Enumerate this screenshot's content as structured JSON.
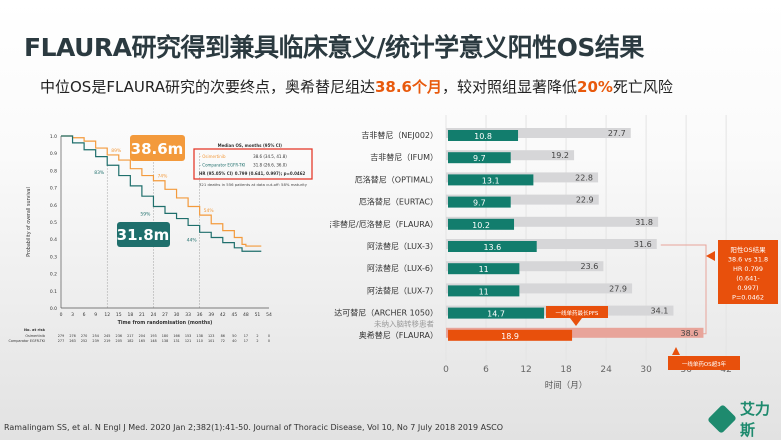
{
  "title": "FLAURA研究得到兼具临床意义/统计学意义阳性OS结果",
  "subtitle": {
    "p1": "中位OS是FLAURA研究的次要终点，奥希替尼组达",
    "h1": "38.6个月",
    "p2": "，较对照组显著降低",
    "h2": "20%",
    "p3": "死亡风险"
  },
  "footer": "Ramalingam SS, et al. N Engl J Med. 2020 Jan 2;382(1):41-50. Journal of Thoracic Disease, Vol 10, No 7 July 2018     2019 ASCO",
  "logo": {
    "text": "艾力斯"
  },
  "colors": {
    "osimertinib": "#f39a3c",
    "comparator": "#1f6f6c",
    "green_bar": "#127d6d",
    "gray_bar": "#d6d6d8",
    "highlight": "#e8500c"
  },
  "chart_data": [
    {
      "type": "line",
      "ylabel": "Probability of overall survival",
      "xlabel": "Time from randomisation (months)",
      "xticks": [
        0,
        3,
        6,
        9,
        12,
        15,
        18,
        21,
        24,
        27,
        30,
        33,
        36,
        39,
        42,
        45,
        48,
        51,
        54
      ],
      "yticks": [
        "0.0",
        "0.1",
        "0.2",
        "0.3",
        "0.4",
        "0.5",
        "0.6",
        "0.7",
        "0.8",
        "0.9",
        "1.0"
      ],
      "xlim": [
        0,
        54
      ],
      "ylim": [
        0,
        1
      ],
      "series": [
        {
          "name": "Osimertinib",
          "points": [
            [
              0,
              1
            ],
            [
              3,
              0.99
            ],
            [
              6,
              0.97
            ],
            [
              9,
              0.93
            ],
            [
              12,
              0.89
            ],
            [
              15,
              0.86
            ],
            [
              18,
              0.81
            ],
            [
              21,
              0.77
            ],
            [
              24,
              0.74
            ],
            [
              27,
              0.69
            ],
            [
              30,
              0.64
            ],
            [
              33,
              0.59
            ],
            [
              36,
              0.54
            ],
            [
              39,
              0.49
            ],
            [
              42,
              0.45
            ],
            [
              45,
              0.41
            ],
            [
              47,
              0.37
            ],
            [
              48,
              0.36
            ],
            [
              52,
              0.36
            ]
          ],
          "label_points": [
            "89%",
            "74%",
            "54%"
          ]
        },
        {
          "name": "Comparator EGFR-TKI",
          "points": [
            [
              0,
              1
            ],
            [
              3,
              0.96
            ],
            [
              6,
              0.92
            ],
            [
              9,
              0.88
            ],
            [
              12,
              0.83
            ],
            [
              15,
              0.77
            ],
            [
              18,
              0.71
            ],
            [
              21,
              0.65
            ],
            [
              24,
              0.59
            ],
            [
              27,
              0.55
            ],
            [
              30,
              0.52
            ],
            [
              33,
              0.48
            ],
            [
              36,
              0.44
            ],
            [
              39,
              0.41
            ],
            [
              42,
              0.38
            ],
            [
              45,
              0.35
            ],
            [
              47,
              0.33
            ],
            [
              52,
              0.33
            ]
          ],
          "label_points": [
            "83%",
            "59%",
            "44%"
          ]
        }
      ],
      "medians": {
        "osimertinib": "38.6m",
        "comparator": "31.8m"
      },
      "legend": {
        "header": "Median OS, months (95% CI)",
        "rows": [
          {
            "label": "Osimertinib",
            "value": "38.6 (34.5, 41.8)"
          },
          {
            "label": "Comparator EGFR-TKI",
            "value": "31.8 (26.6, 36.0)"
          },
          {
            "label": "HR (95.05% CI)",
            "value": "0.799 (0.641, 0.997); p=0.0462"
          }
        ],
        "note": "321 deaths in 556 patients at data cut-off: 58% maturity",
        "placement": "top-right"
      },
      "risk_table": {
        "header": "No. at risk",
        "rows": [
          {
            "label": "Osimertinib",
            "values": [
              279,
              276,
              270,
              254,
              245,
              236,
              217,
              204,
              193,
              180,
              166,
              153,
              138,
              123,
              86,
              50,
              17,
              2,
              0
            ]
          },
          {
            "label": "Comparator EGFR-TKI",
            "values": [
              277,
              263,
              252,
              239,
              219,
              205,
              182,
              165,
              148,
              138,
              131,
              121,
              110,
              101,
              72,
              40,
              17,
              2,
              0
            ]
          }
        ]
      }
    },
    {
      "type": "bar",
      "orientation": "horizontal",
      "xlabel": "时间（月）",
      "xticks": [
        "0",
        "6",
        "12",
        "18",
        "24",
        "30",
        "36",
        "42"
      ],
      "xlim": [
        0,
        42
      ],
      "categories": [
        "吉非替尼（NEJ002）",
        "吉非替尼（IFUM）",
        "厄洛替尼（OPTIMAL）",
        "厄洛替尼（EURTAC）",
        "吉非替尼/厄洛替尼（FLAURA）",
        "阿法替尼（LUX-3）",
        "阿法替尼（LUX-6）",
        "阿法替尼（LUX-7）",
        "达可替尼（ARCHER 1050）",
        "奥希替尼（FLAURA）"
      ],
      "note": "未纳入脑转移患者",
      "series": [
        {
          "name": "PFS",
          "values": [
            10.8,
            9.7,
            13.1,
            9.7,
            10.2,
            13.6,
            11,
            11,
            14.7,
            18.9
          ]
        },
        {
          "name": "OS",
          "values": [
            27.7,
            19.2,
            22.8,
            22.9,
            31.8,
            31.6,
            23.6,
            27.9,
            34.1,
            38.6
          ]
        }
      ],
      "annotations": {
        "pfs": "一线单药最长PFS",
        "os": "一线单药OS超3年",
        "callout": [
          "阳性OS结果",
          "38.6 vs 31.8",
          "HR 0.799",
          "(0.641-",
          "0.997)",
          "P=0.0462"
        ]
      }
    }
  ]
}
